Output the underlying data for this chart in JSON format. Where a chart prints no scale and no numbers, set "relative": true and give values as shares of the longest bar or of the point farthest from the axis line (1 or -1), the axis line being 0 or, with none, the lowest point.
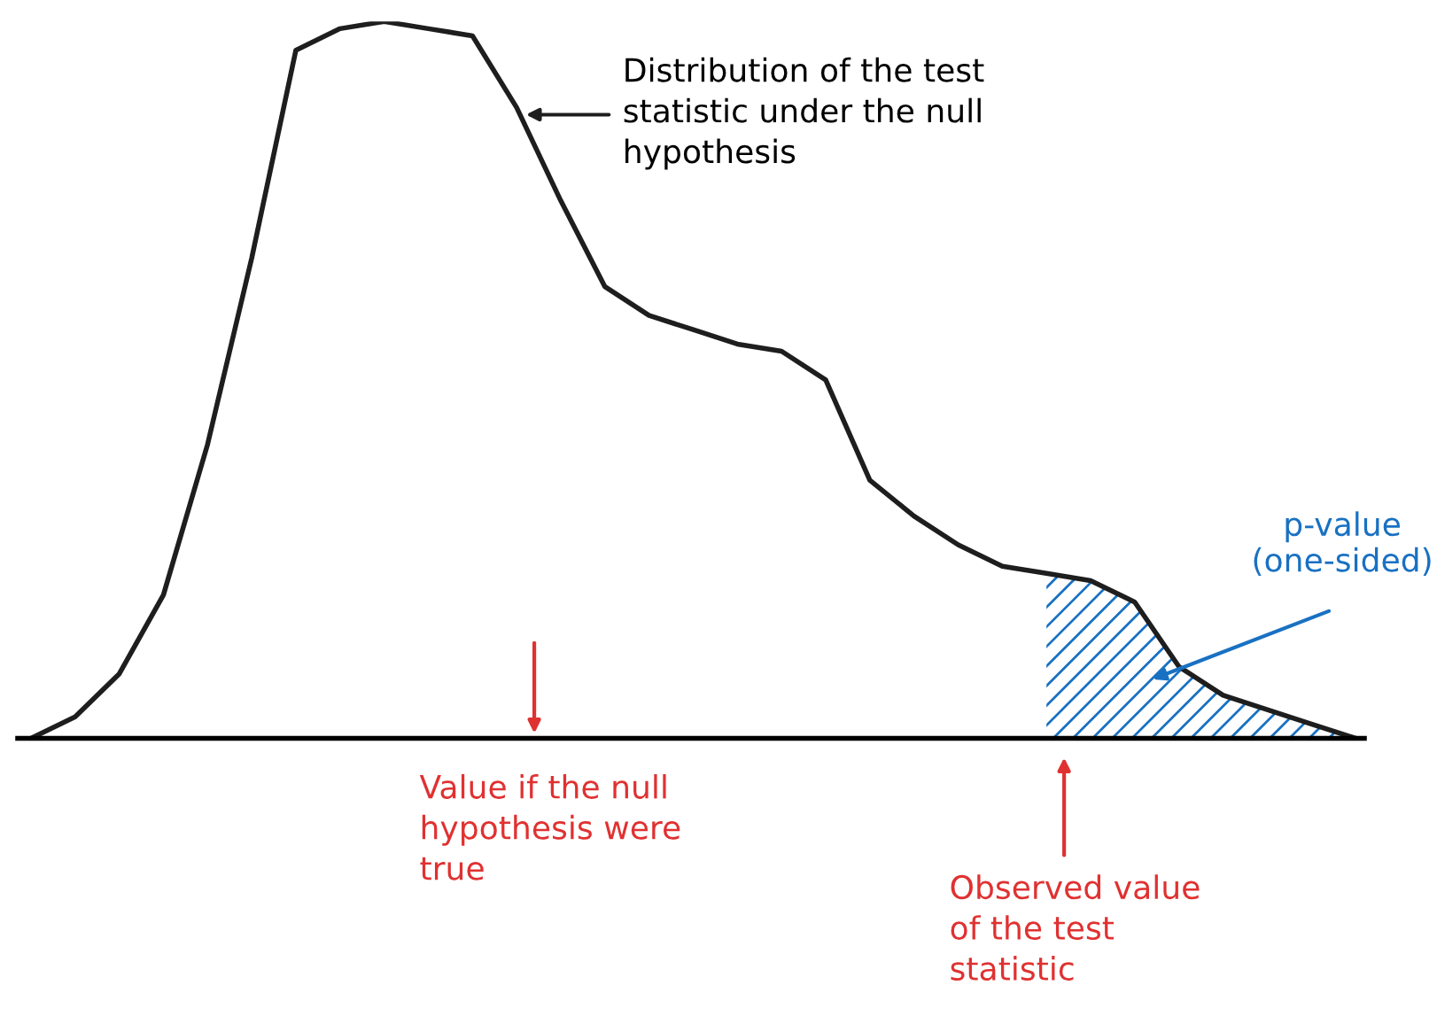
{
  "chart_data": {
    "type": "line",
    "relative": true,
    "categories": [
      null,
      null,
      null,
      null,
      null,
      null,
      null,
      null,
      null,
      null,
      null,
      null,
      null,
      null,
      null,
      null,
      null,
      null,
      null,
      null,
      null,
      null,
      null,
      null,
      null,
      null,
      null,
      null,
      null,
      null,
      null
    ],
    "series": [
      {
        "color": "#1e1e1e",
        "values": [
          0,
          0.03,
          0.09,
          0.2,
          0.41,
          0.67,
          0.96,
          0.99,
          1,
          0.99,
          0.98,
          0.88,
          0.75,
          0.63,
          0.59,
          0.57,
          0.55,
          0.54,
          0.5,
          0.36,
          0.31,
          0.27,
          0.24,
          0.23,
          0.22,
          0.19,
          0.1,
          0.06,
          0.04,
          0.02,
          0
        ]
      },
      {
        "type": "area",
        "name": "p-value\n(one-sided)",
        "color": "#1971c2",
        "values": [
          null,
          null,
          null,
          null,
          null,
          null,
          null,
          null,
          null,
          null,
          null,
          null,
          null,
          null,
          null,
          null,
          null,
          null,
          null,
          null,
          null,
          null,
          null,
          0.23,
          0.22,
          0.19,
          0.1,
          0.06,
          0.04,
          0.02,
          0
        ]
      }
    ],
    "annotations": [
      "Distribution of the test\nstatistic under the null\nhypothesis",
      "Value if the null\nhypothesis were\ntrue",
      "Observed value\nof the test\nstatistic"
    ]
  }
}
